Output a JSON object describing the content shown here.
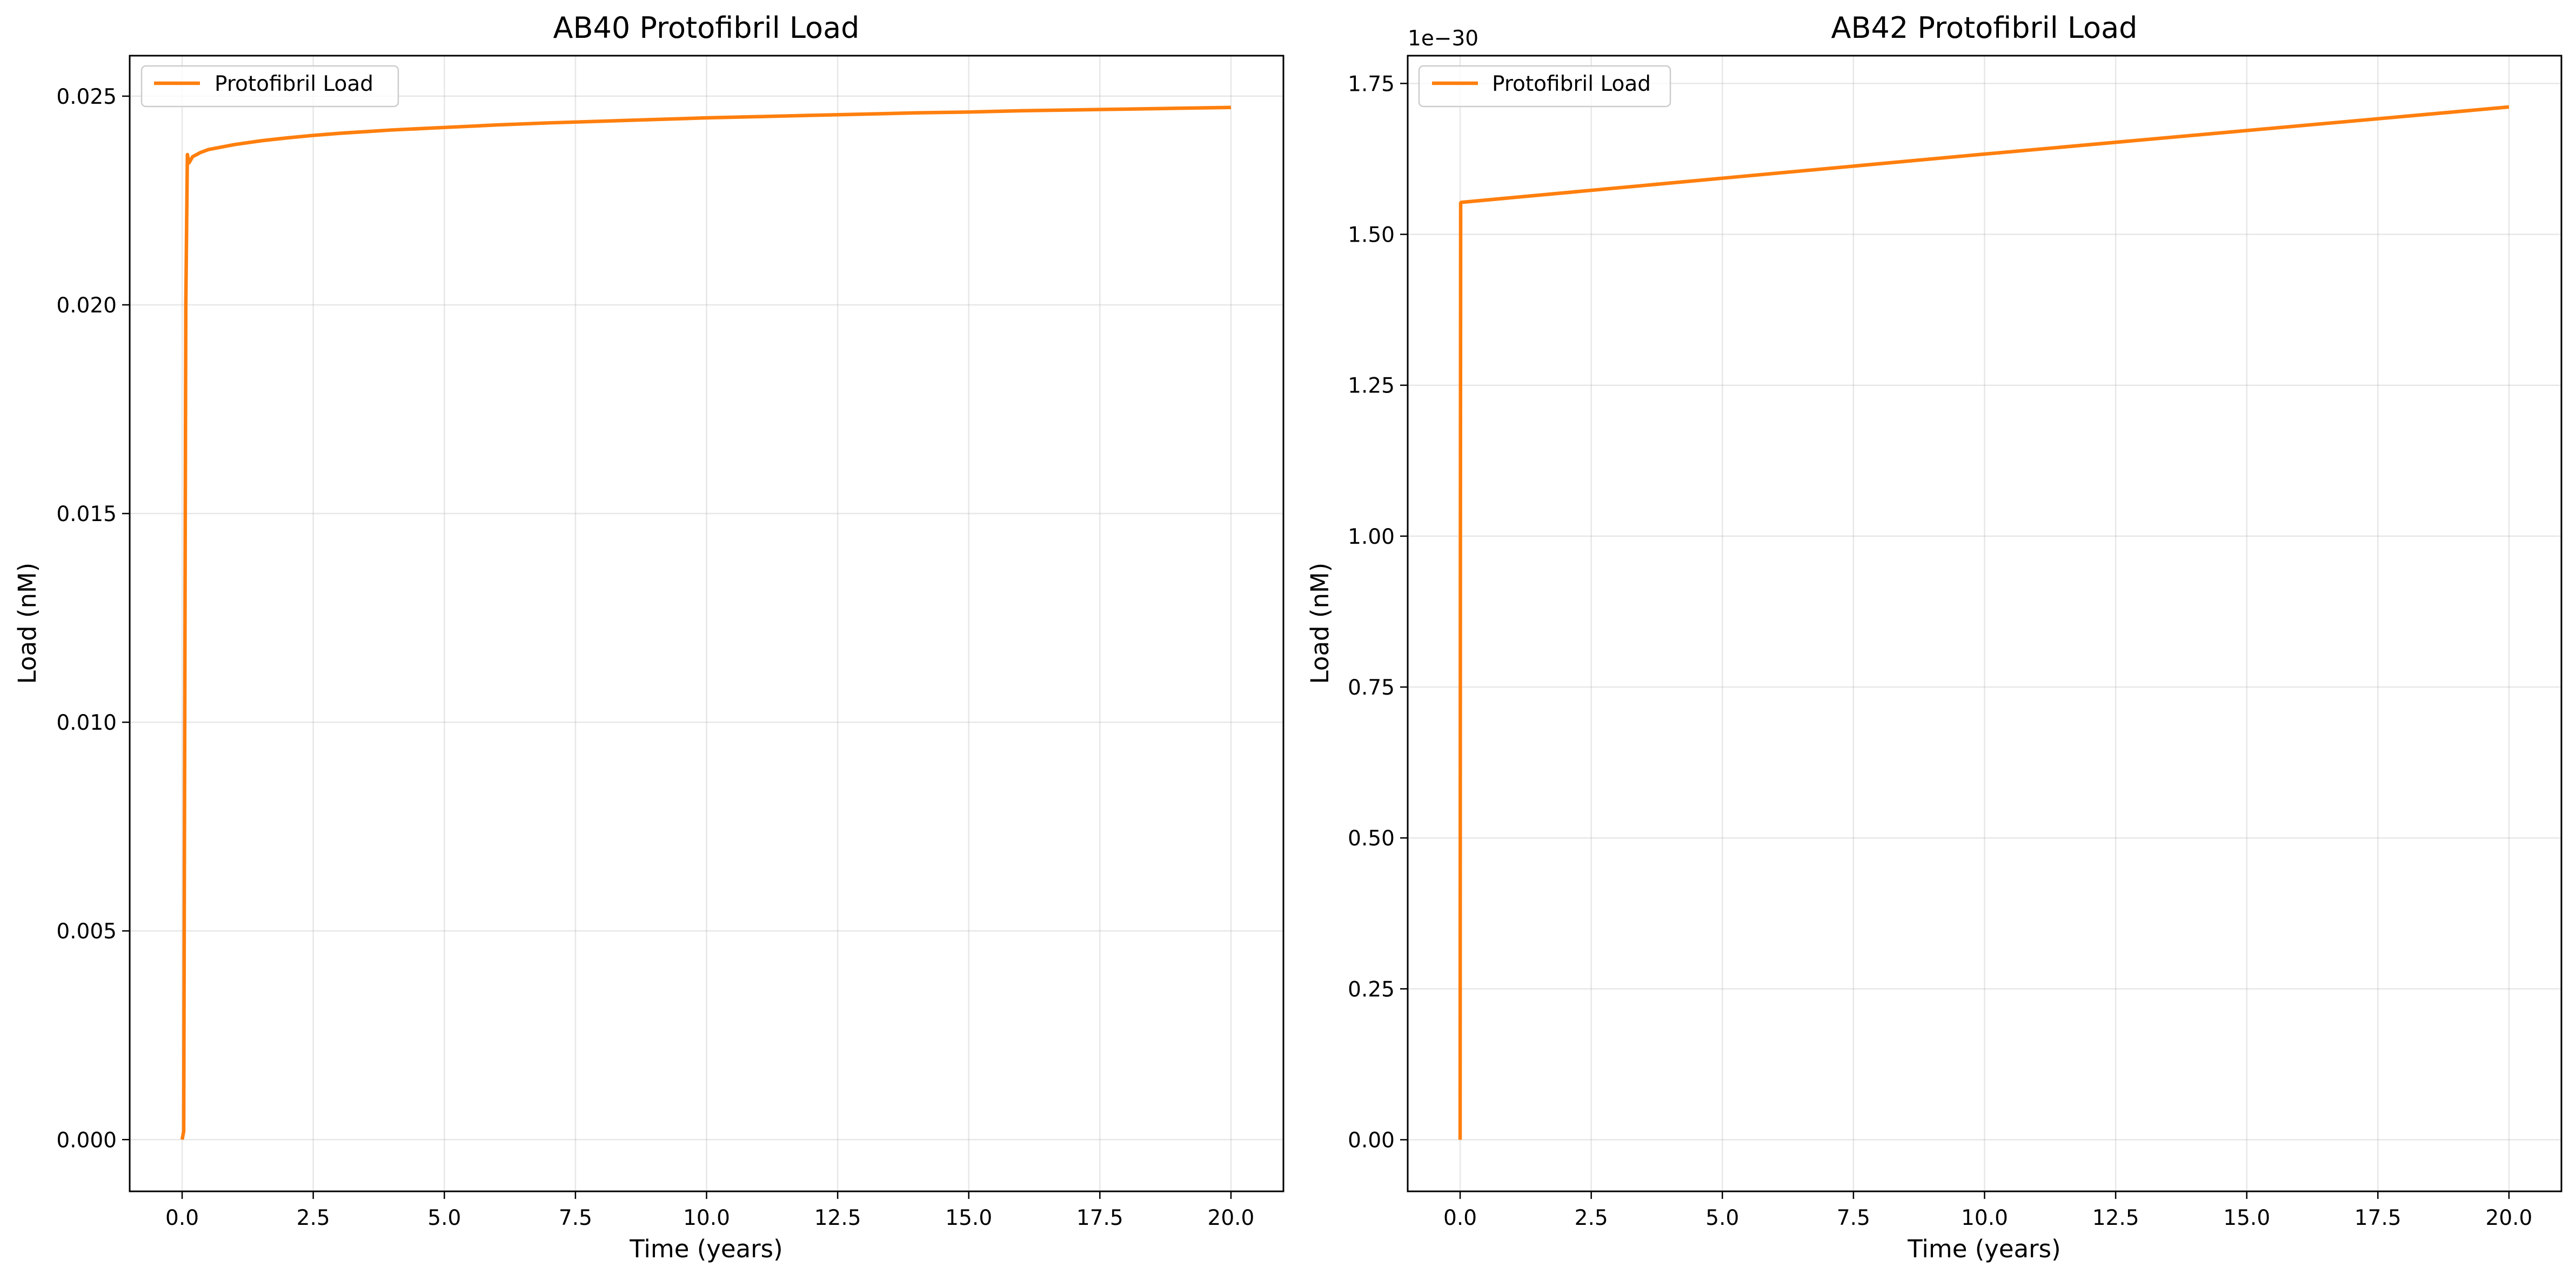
{
  "chart_data": [
    {
      "type": "line",
      "title": "AB40 Protofibril Load",
      "xlabel": "Time (years)",
      "ylabel": "Load (nM)",
      "xlim": [
        -1.0,
        21.0
      ],
      "ylim": [
        -0.00124,
        0.02597
      ],
      "xticks": [
        0.0,
        2.5,
        5.0,
        7.5,
        10.0,
        12.5,
        15.0,
        17.5,
        20.0
      ],
      "xtick_labels": [
        "0.0",
        "2.5",
        "5.0",
        "7.5",
        "10.0",
        "12.5",
        "15.0",
        "17.5",
        "20.0"
      ],
      "yticks": [
        0.0,
        0.005,
        0.01,
        0.015,
        0.02,
        0.025
      ],
      "ytick_labels": [
        "0.000",
        "0.005",
        "0.010",
        "0.015",
        "0.020",
        "0.025"
      ],
      "y_offset_label": "",
      "grid": true,
      "legend_position": "upper-left",
      "series": [
        {
          "name": "Protofibril Load",
          "color": "#ff7f0e",
          "x": [
            0.0,
            0.03,
            0.07,
            0.1,
            0.13,
            0.2,
            0.35,
            0.5,
            0.75,
            1.0,
            1.5,
            2.0,
            2.5,
            3.0,
            4.0,
            5.0,
            6.0,
            7.0,
            8.0,
            9.0,
            10.0,
            11.0,
            12.0,
            13.0,
            14.0,
            15.0,
            16.0,
            17.0,
            18.0,
            19.0,
            20.0
          ],
          "y": [
            0.0,
            0.0002,
            0.02,
            0.0236,
            0.0234,
            0.02355,
            0.02365,
            0.02372,
            0.02378,
            0.02384,
            0.02393,
            0.024,
            0.02406,
            0.02411,
            0.02419,
            0.02425,
            0.02431,
            0.02436,
            0.0244,
            0.02444,
            0.02448,
            0.02451,
            0.02454,
            0.02457,
            0.0246,
            0.02462,
            0.02465,
            0.02467,
            0.02469,
            0.02471,
            0.02473
          ]
        }
      ]
    },
    {
      "type": "line",
      "title": "AB42 Protofibril Load",
      "xlabel": "Time (years)",
      "ylabel": "Load (nM)",
      "xlim": [
        -1.0,
        21.0
      ],
      "ylim": [
        -8.55e-32,
        1.796e-30
      ],
      "xticks": [
        0.0,
        2.5,
        5.0,
        7.5,
        10.0,
        12.5,
        15.0,
        17.5,
        20.0
      ],
      "xtick_labels": [
        "0.0",
        "2.5",
        "5.0",
        "7.5",
        "10.0",
        "12.5",
        "15.0",
        "17.5",
        "20.0"
      ],
      "yticks": [
        0.0,
        2.5e-31,
        5e-31,
        7.5e-31,
        1e-30,
        1.25e-30,
        1.5e-30,
        1.75e-30
      ],
      "ytick_labels": [
        "0.00",
        "0.25",
        "0.50",
        "0.75",
        "1.00",
        "1.25",
        "1.50",
        "1.75"
      ],
      "y_offset_label": "1e−30",
      "grid": true,
      "legend_position": "upper-left",
      "series": [
        {
          "name": "Protofibril Load",
          "color": "#ff7f0e",
          "x": [
            0.0,
            0.005,
            0.01,
            0.02,
            5.0,
            10.0,
            15.0,
            20.0
          ],
          "y": [
            0.0,
            1e-30,
            1.552e-30,
            1.553e-30,
            1.593e-30,
            1.633e-30,
            1.672e-30,
            1.711e-30
          ]
        }
      ]
    }
  ]
}
